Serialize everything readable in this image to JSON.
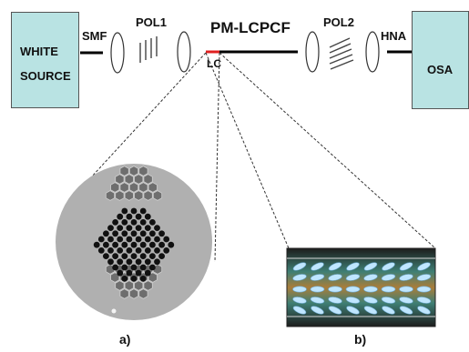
{
  "labels": {
    "white_source_line1": "WHITE",
    "white_source_line2": "SOURCE",
    "smf": "SMF",
    "pol1": "POL1",
    "pm_lcpcf": "PM-LCPCF",
    "lc": "LC",
    "pol2": "POL2",
    "hna": "HNA",
    "osa": "OSA",
    "panel_a": "a)",
    "panel_b": "b)"
  },
  "colors": {
    "source_box": "#b9e3e3",
    "lc_segment": "#e02020",
    "fiber": "#000000",
    "hole": "#111111",
    "cladding": "#b0b0b0"
  }
}
